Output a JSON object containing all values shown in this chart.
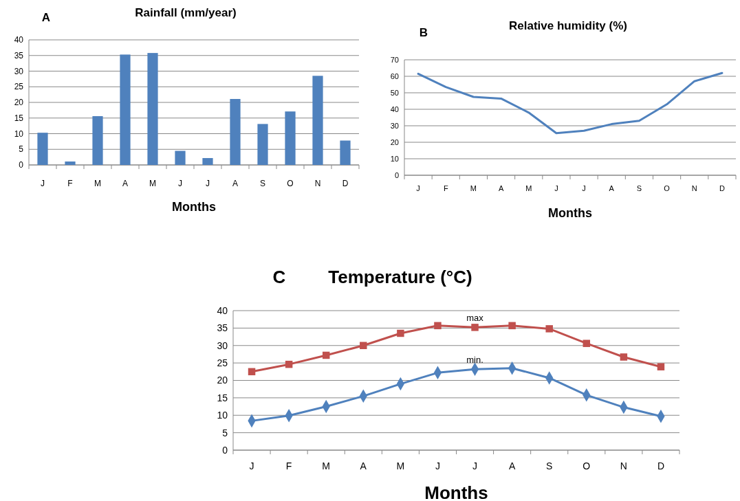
{
  "chart_data": [
    {
      "type": "bar",
      "title": "Rainfall (mm/year)",
      "xlabel": "Months",
      "annotations": [
        "A"
      ],
      "categories": [
        "J",
        "F",
        "M",
        "A",
        "M",
        "J",
        "J",
        "A",
        "S",
        "O",
        "N",
        "D"
      ],
      "values": [
        10.3,
        1.1,
        15.6,
        35.3,
        35.8,
        4.5,
        2.2,
        21.1,
        13.1,
        17.1,
        28.5,
        7.8
      ],
      "color": "#4f81bd",
      "ylim": [
        0,
        40
      ],
      "yticks": [
        0,
        5,
        10,
        15,
        20,
        25,
        30,
        35,
        40
      ],
      "grid": "y"
    },
    {
      "type": "line",
      "title": "Relative humidity (%)",
      "xlabel": "Months",
      "annotations": [
        "B"
      ],
      "categories": [
        "J",
        "F",
        "M",
        "A",
        "M",
        "J",
        "J",
        "A",
        "S",
        "O",
        "N",
        "D"
      ],
      "values": [
        61.5,
        53.5,
        47.5,
        46.5,
        38,
        25.5,
        27,
        31,
        33,
        43,
        57,
        62
      ],
      "color": "#4f81bd",
      "ylim": [
        0,
        70
      ],
      "yticks": [
        0,
        10,
        20,
        30,
        40,
        50,
        60,
        70
      ],
      "grid": "y"
    },
    {
      "type": "line",
      "title": "Temperature (°C)",
      "xlabel": "Months",
      "annotations": [
        "C"
      ],
      "categories": [
        "J",
        "F",
        "M",
        "A",
        "M",
        "J",
        "J",
        "A",
        "S",
        "O",
        "N",
        "D"
      ],
      "series": [
        {
          "name": "max",
          "color": "#c0504d",
          "marker": "square",
          "values": [
            22.5,
            24.6,
            27.2,
            30,
            33.5,
            35.7,
            35.2,
            35.7,
            34.8,
            30.6,
            26.7,
            23.9
          ]
        },
        {
          "name": "min.",
          "color": "#4f81bd",
          "marker": "diamond",
          "values": [
            8.4,
            9.9,
            12.5,
            15.5,
            19,
            22.2,
            23.2,
            23.5,
            20.7,
            15.8,
            12.3,
            9.7
          ]
        }
      ],
      "ylim": [
        0,
        40
      ],
      "yticks": [
        0,
        5,
        10,
        15,
        20,
        25,
        30,
        35,
        40
      ],
      "grid": "y"
    }
  ]
}
